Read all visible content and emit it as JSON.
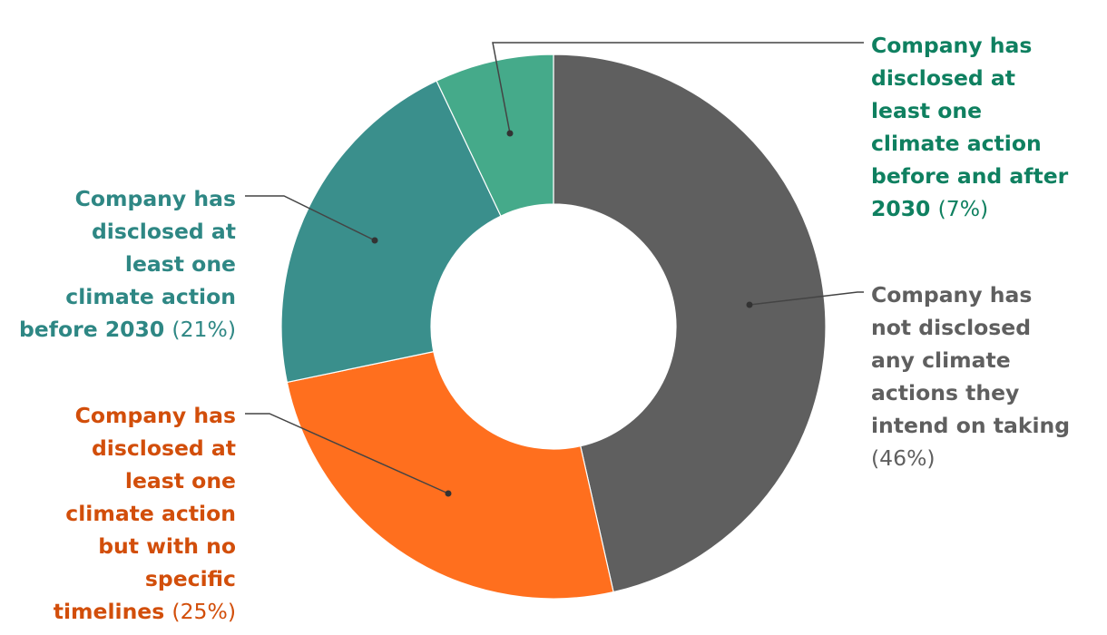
{
  "chart_data": {
    "type": "donut",
    "start": "top, clockwise",
    "slices": [
      {
        "key": "none",
        "value": 46,
        "color": "#5f5f5f",
        "label_color": "#5f5f5f",
        "lines": [
          "Company has",
          "not disclosed",
          "any climate",
          "actions they",
          "intend on taking"
        ],
        "pct": "(46%)",
        "pct_own_line": true,
        "align": "left"
      },
      {
        "key": "no-timeline",
        "value": 25,
        "color": "#ff6f1e",
        "label_color": "#d24e0a",
        "lines": [
          "Company has",
          "disclosed at",
          "least one",
          "climate action",
          "but with no",
          "specific",
          "timelines"
        ],
        "pct": "(25%)",
        "pct_own_line": false,
        "align": "right"
      },
      {
        "key": "before-2030",
        "value": 21,
        "color": "#3a8f8c",
        "label_color": "#2e8784",
        "lines": [
          "Company has",
          "disclosed at",
          "least one",
          "climate action",
          "before 2030"
        ],
        "pct": "(21%)",
        "pct_own_line": false,
        "align": "right"
      },
      {
        "key": "before-after-2030",
        "value": 7,
        "color": "#45aa8a",
        "label_color": "#0f8060",
        "lines": [
          "Company has",
          "disclosed at",
          "least one",
          "climate action",
          "before and after",
          "2030"
        ],
        "pct": "(7%)",
        "pct_own_line": false,
        "align": "left"
      }
    ]
  }
}
